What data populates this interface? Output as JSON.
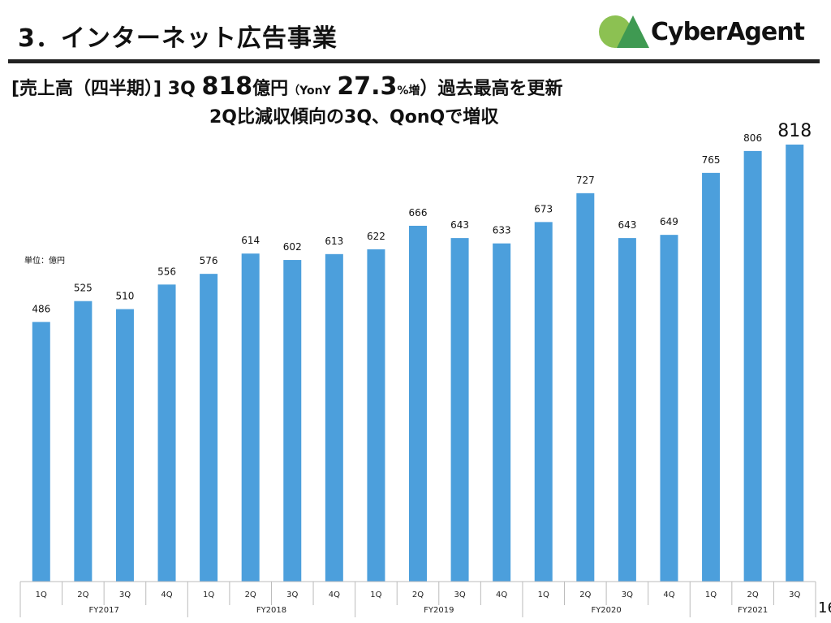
{
  "header": {
    "title": "3．インターネット広告事業",
    "logo_text": "CyberAgent"
  },
  "headline": {
    "prefix": "[売上高（四半期）]",
    "quarter": "3Q",
    "value": "818",
    "unit": "億円",
    "yoy_open": "（YonY",
    "yoy_value": "27.3",
    "yoy_unit": "%増",
    "yoy_close": "）",
    "tail": "過去最高を更新",
    "line2": "2Q比減収傾向の3Q、QonQで増収"
  },
  "page_number": "16",
  "colors": {
    "bar": "#4c9fdc",
    "rule": "#222222",
    "logo_light": "#8cc152",
    "logo_dark": "#3f9a52"
  },
  "chart_data": {
    "type": "bar",
    "unit_label": "単位：億円",
    "categories": [
      "1Q",
      "2Q",
      "3Q",
      "4Q",
      "1Q",
      "2Q",
      "3Q",
      "4Q",
      "1Q",
      "2Q",
      "3Q",
      "4Q",
      "1Q",
      "2Q",
      "3Q",
      "4Q",
      "1Q",
      "2Q",
      "3Q"
    ],
    "groups": [
      {
        "label": "FY2017",
        "count": 4
      },
      {
        "label": "FY2018",
        "count": 4
      },
      {
        "label": "FY2019",
        "count": 4
      },
      {
        "label": "FY2020",
        "count": 4
      },
      {
        "label": "FY2021",
        "count": 3
      }
    ],
    "values": [
      486,
      525,
      510,
      556,
      576,
      614,
      602,
      613,
      622,
      666,
      643,
      633,
      673,
      727,
      643,
      649,
      765,
      806,
      818
    ],
    "ylim": [
      0,
      818
    ],
    "highlight_last": true
  }
}
